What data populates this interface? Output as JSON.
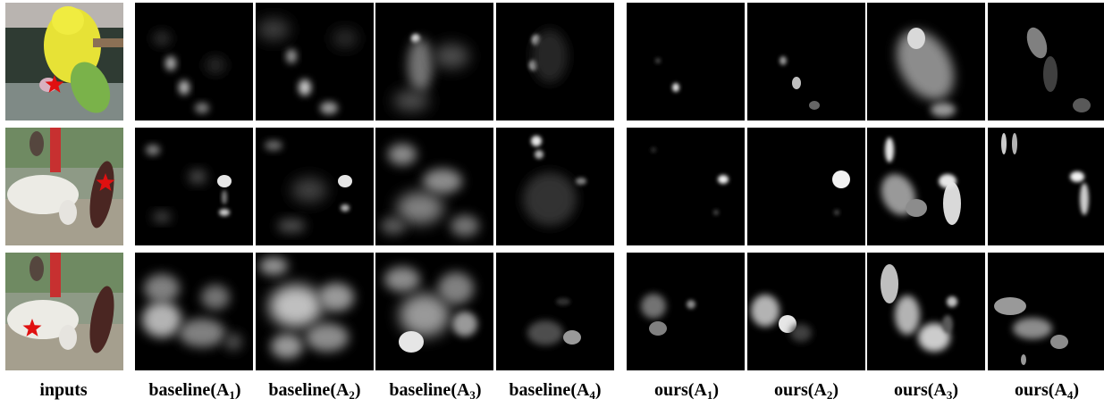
{
  "columns": [
    {
      "label": "inputs"
    },
    {
      "label": "baseline",
      "sub": "1"
    },
    {
      "label": "baseline",
      "sub": "2"
    },
    {
      "label": "baseline",
      "sub": "3"
    },
    {
      "label": "baseline",
      "sub": "4"
    },
    {
      "label": "ours",
      "sub": "1"
    },
    {
      "label": "ours",
      "sub": "2"
    },
    {
      "label": "ours",
      "sub": "3"
    },
    {
      "label": "ours",
      "sub": "4"
    }
  ],
  "rows": [
    {
      "subject": "parrot",
      "marker": "red-star"
    },
    {
      "subject": "cow-and-person",
      "marker": "red-star"
    },
    {
      "subject": "cow-and-person",
      "marker": "red-star"
    }
  ],
  "colors": {
    "marker": "#e01010",
    "background": "#ffffff"
  }
}
